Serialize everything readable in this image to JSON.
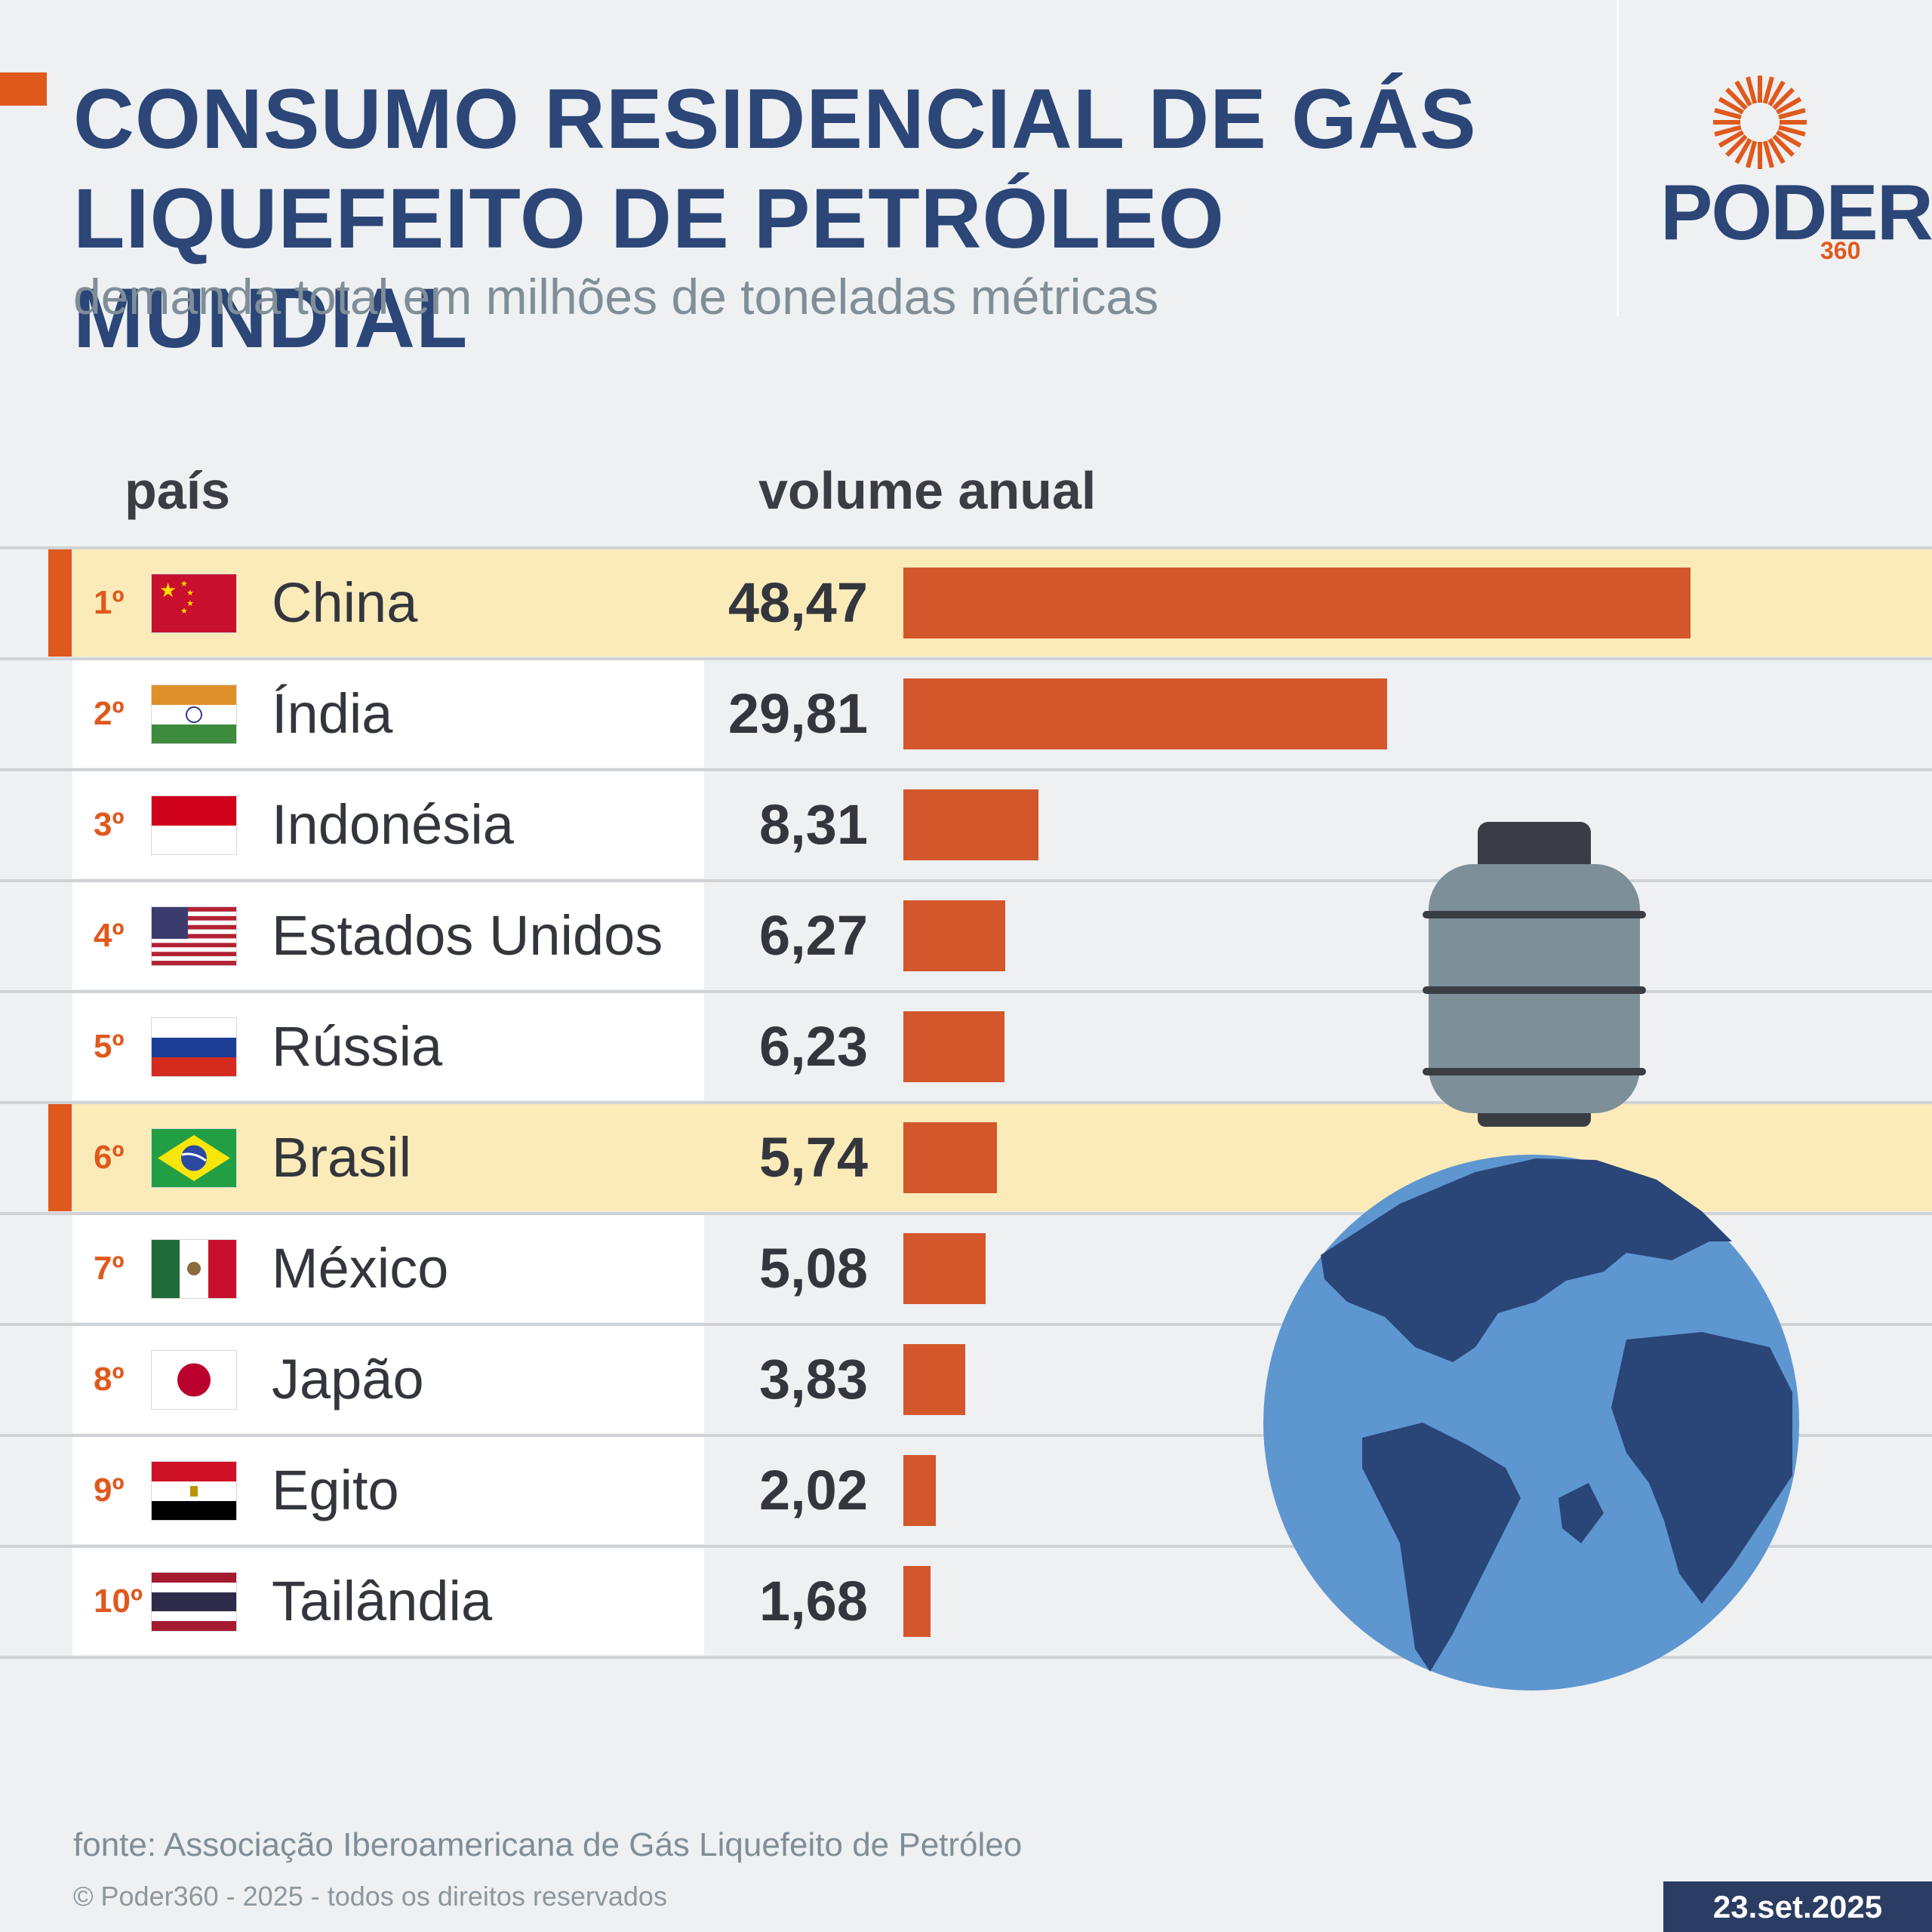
{
  "header": {
    "title_line1": "CONSUMO RESIDENCIAL DE GÁS",
    "title_line2": "LIQUEFEITO DE PETRÓLEO MUNDIAL",
    "subtitle": "demanda total em milhões de toneladas métricas"
  },
  "brand": {
    "name": "PODER",
    "number": "360",
    "accent_color": "#e0591c",
    "primary_color": "#2b4677"
  },
  "columns": {
    "country": "país",
    "volume": "volume anual"
  },
  "chart_data": {
    "type": "bar",
    "orientation": "horizontal",
    "title": "CONSUMO RESIDENCIAL DE GÁS LIQUEFEITO DE PETRÓLEO MUNDIAL",
    "subtitle": "demanda total em milhões de toneladas métricas",
    "unit": "milhões de toneladas métricas",
    "bar_color": "#d3572b",
    "rows": [
      {
        "rank": "1º",
        "country": "China",
        "flag_icon": "china-flag-icon",
        "value": 48.47,
        "label": "48,47",
        "highlight": true
      },
      {
        "rank": "2º",
        "country": "Índia",
        "flag_icon": "india-flag-icon",
        "value": 29.81,
        "label": "29,81",
        "highlight": false
      },
      {
        "rank": "3º",
        "country": "Indonésia",
        "flag_icon": "indonesia-flag-icon",
        "value": 8.31,
        "label": "8,31",
        "highlight": false
      },
      {
        "rank": "4º",
        "country": "Estados Unidos",
        "flag_icon": "usa-flag-icon",
        "value": 6.27,
        "label": "6,27",
        "highlight": false
      },
      {
        "rank": "5º",
        "country": "Rússia",
        "flag_icon": "russia-flag-icon",
        "value": 6.23,
        "label": "6,23",
        "highlight": false
      },
      {
        "rank": "6º",
        "country": "Brasil",
        "flag_icon": "brazil-flag-icon",
        "value": 5.74,
        "label": "5,74",
        "highlight": true
      },
      {
        "rank": "7º",
        "country": "México",
        "flag_icon": "mexico-flag-icon",
        "value": 5.08,
        "label": "5,08",
        "highlight": false
      },
      {
        "rank": "8º",
        "country": "Japão",
        "flag_icon": "japan-flag-icon",
        "value": 3.83,
        "label": "3,83",
        "highlight": false
      },
      {
        "rank": "9º",
        "country": "Egito",
        "flag_icon": "egypt-flag-icon",
        "value": 2.02,
        "label": "2,02",
        "highlight": false
      },
      {
        "rank": "10º",
        "country": "Tailândia",
        "flag_icon": "thailand-flag-icon",
        "value": 1.68,
        "label": "1,68",
        "highlight": false
      }
    ]
  },
  "footer": {
    "source": "fonte: Associação Iberoamericana de Gás Liquefeito de Petróleo",
    "copyright": "© Poder360 - 2025 - todos os direitos reservados",
    "date": "23.set.2025"
  }
}
